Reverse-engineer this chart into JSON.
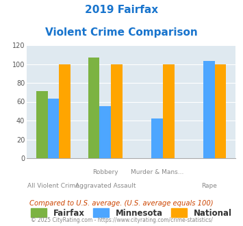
{
  "title_line1": "2019 Fairfax",
  "title_line2": "Violent Crime Comparison",
  "title_color": "#1874CD",
  "x_top_labels": [
    "",
    "Robbery",
    "Murder & Mans...",
    ""
  ],
  "x_bottom_labels": [
    "All Violent Crime",
    "Aggravated Assault",
    "",
    "Rape"
  ],
  "fairfax_values": [
    71,
    107,
    0,
    0
  ],
  "fairfax_visible": [
    true,
    true,
    false,
    false
  ],
  "minnesota_values": [
    63,
    55,
    42,
    103
  ],
  "national_values": [
    100,
    100,
    100,
    100
  ],
  "fairfax_color": "#7CB342",
  "minnesota_color": "#4DA6FF",
  "national_color": "#FFA500",
  "ylim": [
    0,
    120
  ],
  "yticks": [
    0,
    20,
    40,
    60,
    80,
    100,
    120
  ],
  "bg_color": "#DFE9F0",
  "legend_labels": [
    "Fairfax",
    "Minnesota",
    "National"
  ],
  "footnote1": "Compared to U.S. average. (U.S. average equals 100)",
  "footnote2": "© 2025 CityRating.com - https://www.cityrating.com/crime-statistics/",
  "footnote1_color": "#CC4400",
  "footnote2_color": "#888888",
  "label_color": "#888888"
}
